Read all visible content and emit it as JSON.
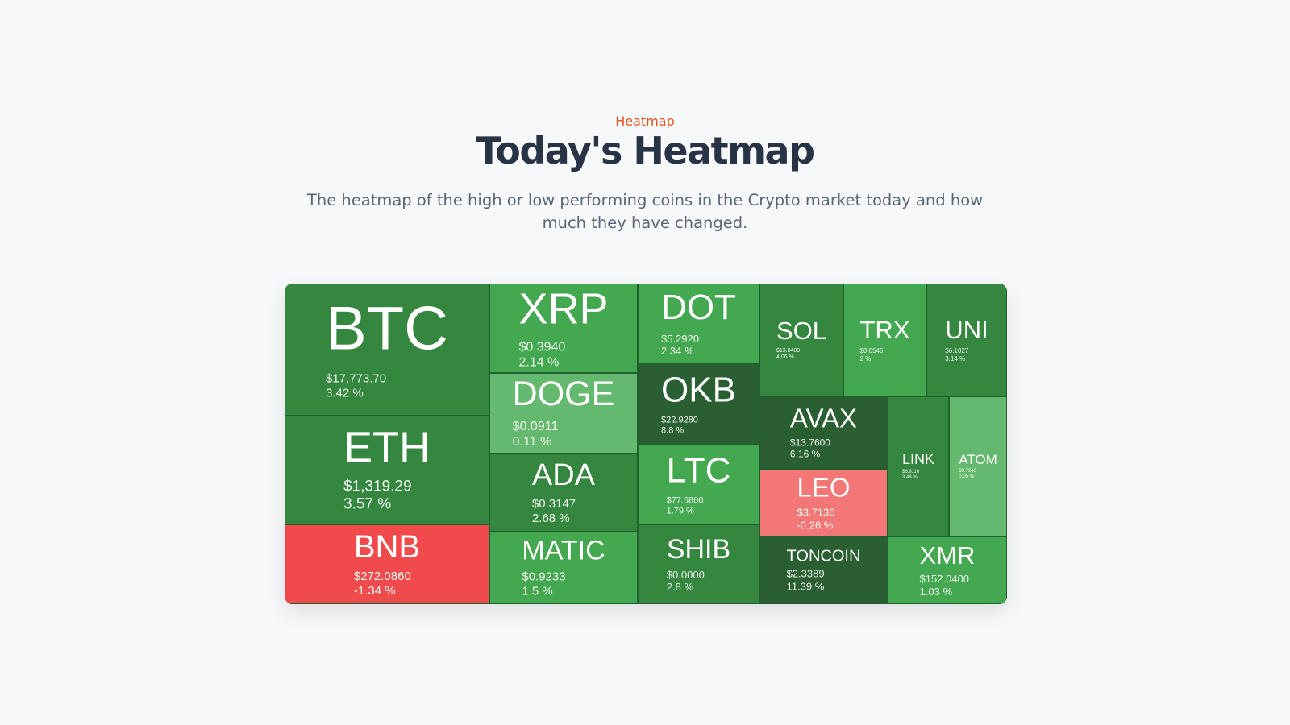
{
  "section": {
    "eyebrow": "Heatmap",
    "title": "Today's Heatmap",
    "description": "The heatmap of the high or low performing coins in the Crypto market today and how much they have changed."
  },
  "colors": {
    "accent": "#e5541e",
    "title": "#283445",
    "green_strong": "#2a5f32",
    "green_mid": "#35863f",
    "green_bright": "#43a84f",
    "green_light": "#65b96f",
    "red_strong": "#f14a4c",
    "red_light": "#f47777"
  },
  "coins": [
    {
      "symbol": "BTC",
      "price": "$17,773.70",
      "change": "3.42 %",
      "color": "#35863f"
    },
    {
      "symbol": "ETH",
      "price": "$1,319.29",
      "change": "3.57 %",
      "color": "#35863f"
    },
    {
      "symbol": "BNB",
      "price": "$272.0860",
      "change": "-1.34 %",
      "color": "#f14a4c"
    },
    {
      "symbol": "XRP",
      "price": "$0.3940",
      "change": "2.14 %",
      "color": "#43a84f"
    },
    {
      "symbol": "DOGE",
      "price": "$0.0911",
      "change": "0.11 %",
      "color": "#65b96f"
    },
    {
      "symbol": "ADA",
      "price": "$0.3147",
      "change": "2.68 %",
      "color": "#35863f"
    },
    {
      "symbol": "MATIC",
      "price": "$0.9233",
      "change": "1.5 %",
      "color": "#43a84f"
    },
    {
      "symbol": "DOT",
      "price": "$5.2920",
      "change": "2.34 %",
      "color": "#43a84f"
    },
    {
      "symbol": "OKB",
      "price": "$22.9280",
      "change": "8.8 %",
      "color": "#2a5f32"
    },
    {
      "symbol": "LTC",
      "price": "$77.5800",
      "change": "1.79 %",
      "color": "#43a84f"
    },
    {
      "symbol": "SHIB",
      "price": "$0.0000",
      "change": "2.8 %",
      "color": "#35863f"
    },
    {
      "symbol": "SOL",
      "price": "$13.8400",
      "change": "4.06 %",
      "color": "#35863f"
    },
    {
      "symbol": "TRX",
      "price": "$0.0545",
      "change": "2 %",
      "color": "#43a84f"
    },
    {
      "symbol": "UNI",
      "price": "$6.1027",
      "change": "3.14 %",
      "color": "#35863f"
    },
    {
      "symbol": "AVAX",
      "price": "$13.7600",
      "change": "6.16 %",
      "color": "#2a5f32"
    },
    {
      "symbol": "LEO",
      "price": "$3.7136",
      "change": "-0.26 %",
      "color": "#f47777"
    },
    {
      "symbol": "TONCOIN",
      "price": "$2.3389",
      "change": "11.39 %",
      "color": "#2a5f32"
    },
    {
      "symbol": "LINK",
      "price": "$6.9110",
      "change": "3.48 %",
      "color": "#35863f"
    },
    {
      "symbol": "ATOM",
      "price": "$9.7240",
      "change": "0.05 %",
      "color": "#65b96f"
    },
    {
      "symbol": "XMR",
      "price": "$152.0400",
      "change": "1.03 %",
      "color": "#43a84f"
    }
  ]
}
